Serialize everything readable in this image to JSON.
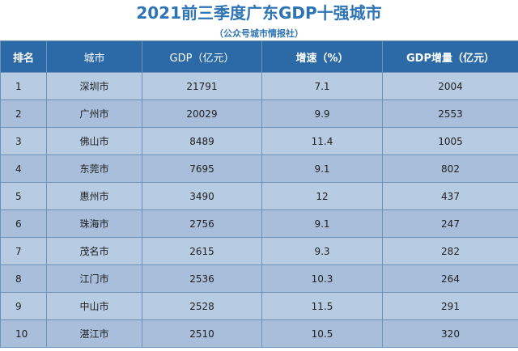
{
  "title": "2021前三季度广东GDP十强城市",
  "subtitle": "（公众号城市情报社）",
  "headers": {
    "rank": "排名",
    "city": "城市",
    "gdp": "GDP（亿元）",
    "growth": "增速（%）",
    "increase": "GDP增量（亿元）"
  },
  "rows": [
    {
      "rank": "1",
      "city": "深圳市",
      "gdp": "21791",
      "growth": "7.1",
      "increase": "2004"
    },
    {
      "rank": "2",
      "city": "广州市",
      "gdp": "20029",
      "growth": "9.9",
      "increase": "2553"
    },
    {
      "rank": "3",
      "city": "佛山市",
      "gdp": "8489",
      "growth": "11.4",
      "increase": "1005"
    },
    {
      "rank": "4",
      "city": "东莞市",
      "gdp": "7695",
      "growth": "9.1",
      "increase": "802"
    },
    {
      "rank": "5",
      "city": "惠州市",
      "gdp": "3490",
      "growth": "12",
      "increase": "437"
    },
    {
      "rank": "6",
      "city": "珠海市",
      "gdp": "2756",
      "growth": "9.1",
      "increase": "247"
    },
    {
      "rank": "7",
      "city": "茂名市",
      "gdp": "2615",
      "growth": "9.3",
      "increase": "282"
    },
    {
      "rank": "8",
      "city": "江门市",
      "gdp": "2536",
      "growth": "10.3",
      "increase": "264"
    },
    {
      "rank": "9",
      "city": "中山市",
      "gdp": "2528",
      "growth": "11.5",
      "increase": "291"
    },
    {
      "rank": "10",
      "city": "湛江市",
      "gdp": "2510",
      "growth": "10.5",
      "increase": "320"
    }
  ],
  "colors": {
    "title": "#2e74b5",
    "header_bg": "#2b6aa6",
    "row_bg": "#b7cbe3",
    "row_alt_bg": "#a8bedb"
  }
}
